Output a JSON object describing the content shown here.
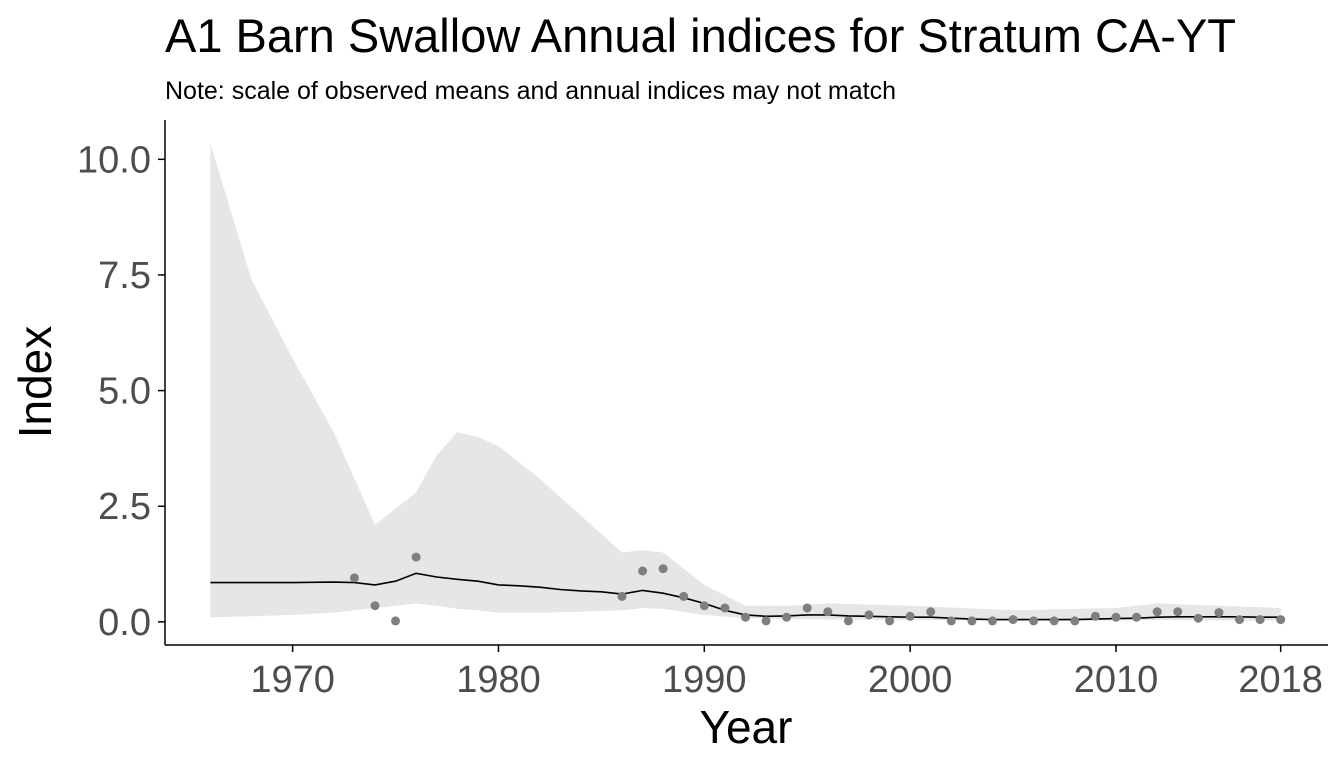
{
  "chart_data": {
    "type": "line",
    "title": "A1 Barn Swallow Annual indices for Stratum CA-YT",
    "subtitle": "Note: scale of observed means and annual indices may not match",
    "xlabel": "Year",
    "ylabel": "Index",
    "xlim": [
      1963.8,
      2020.3
    ],
    "ylim": [
      -0.5,
      10.85
    ],
    "x_ticks": [
      1970,
      1980,
      1990,
      2000,
      2010,
      2018
    ],
    "y_ticks": [
      0.0,
      2.5,
      5.0,
      7.5,
      10.0
    ],
    "y_tick_labels": [
      "0.0",
      "2.5",
      "5.0",
      "7.5",
      "10.0"
    ],
    "grid": false,
    "colors": {
      "ribbon": "#e6e6e6",
      "line": "#000000",
      "points": "#7f7f7f",
      "axis": "#000000"
    },
    "ribbon": {
      "x": [
        1966,
        1968,
        1970,
        1972,
        1974,
        1976,
        1977,
        1978,
        1979,
        1980,
        1982,
        1984,
        1986,
        1987,
        1988,
        1990,
        1992,
        1994,
        1996,
        2000,
        2005,
        2010,
        2012,
        2015,
        2018
      ],
      "upper": [
        10.35,
        7.4,
        5.7,
        4.1,
        2.1,
        2.8,
        3.6,
        4.1,
        4.0,
        3.8,
        3.1,
        2.3,
        1.5,
        1.55,
        1.5,
        0.8,
        0.35,
        0.35,
        0.4,
        0.35,
        0.25,
        0.3,
        0.4,
        0.35,
        0.3
      ],
      "lower": [
        0.1,
        0.12,
        0.15,
        0.2,
        0.3,
        0.4,
        0.35,
        0.28,
        0.25,
        0.2,
        0.2,
        0.22,
        0.25,
        0.3,
        0.28,
        0.15,
        0.08,
        0.06,
        0.05,
        0.04,
        0.02,
        0.03,
        0.04,
        0.03,
        0.03
      ]
    },
    "series": [
      {
        "x": [
          1966,
          1968,
          1970,
          1972,
          1973,
          1974,
          1975,
          1976,
          1977,
          1978,
          1979,
          1980,
          1981,
          1982,
          1983,
          1984,
          1985,
          1986,
          1987,
          1988,
          1989,
          1990,
          1991,
          1992,
          1993,
          1994,
          1995,
          1996,
          1997,
          1998,
          1999,
          2000,
          2001,
          2002,
          2003,
          2004,
          2005,
          2006,
          2007,
          2008,
          2009,
          2010,
          2011,
          2012,
          2013,
          2014,
          2015,
          2016,
          2017,
          2018
        ],
        "y": [
          0.85,
          0.85,
          0.85,
          0.86,
          0.85,
          0.8,
          0.88,
          1.05,
          0.97,
          0.92,
          0.88,
          0.8,
          0.78,
          0.75,
          0.7,
          0.67,
          0.65,
          0.6,
          0.68,
          0.62,
          0.52,
          0.4,
          0.25,
          0.15,
          0.12,
          0.13,
          0.15,
          0.15,
          0.13,
          0.12,
          0.11,
          0.1,
          0.1,
          0.08,
          0.06,
          0.05,
          0.05,
          0.05,
          0.05,
          0.05,
          0.06,
          0.07,
          0.08,
          0.1,
          0.11,
          0.11,
          0.11,
          0.11,
          0.1,
          0.1
        ]
      }
    ],
    "points": {
      "x": [
        1973,
        1974,
        1975,
        1976,
        1986,
        1987,
        1988,
        1989,
        1990,
        1991,
        1992,
        1993,
        1994,
        1995,
        1996,
        1997,
        1998,
        1999,
        2000,
        2001,
        2002,
        2003,
        2004,
        2005,
        2006,
        2007,
        2008,
        2009,
        2010,
        2011,
        2012,
        2013,
        2014,
        2015,
        2016,
        2017,
        2018
      ],
      "y": [
        0.95,
        0.35,
        0.02,
        1.4,
        0.55,
        1.1,
        1.15,
        0.55,
        0.35,
        0.3,
        0.1,
        0.02,
        0.1,
        0.3,
        0.22,
        0.02,
        0.15,
        0.02,
        0.12,
        0.22,
        0.02,
        0.02,
        0.02,
        0.05,
        0.02,
        0.02,
        0.02,
        0.12,
        0.1,
        0.1,
        0.22,
        0.22,
        0.08,
        0.2,
        0.05,
        0.05,
        0.05
      ]
    }
  }
}
